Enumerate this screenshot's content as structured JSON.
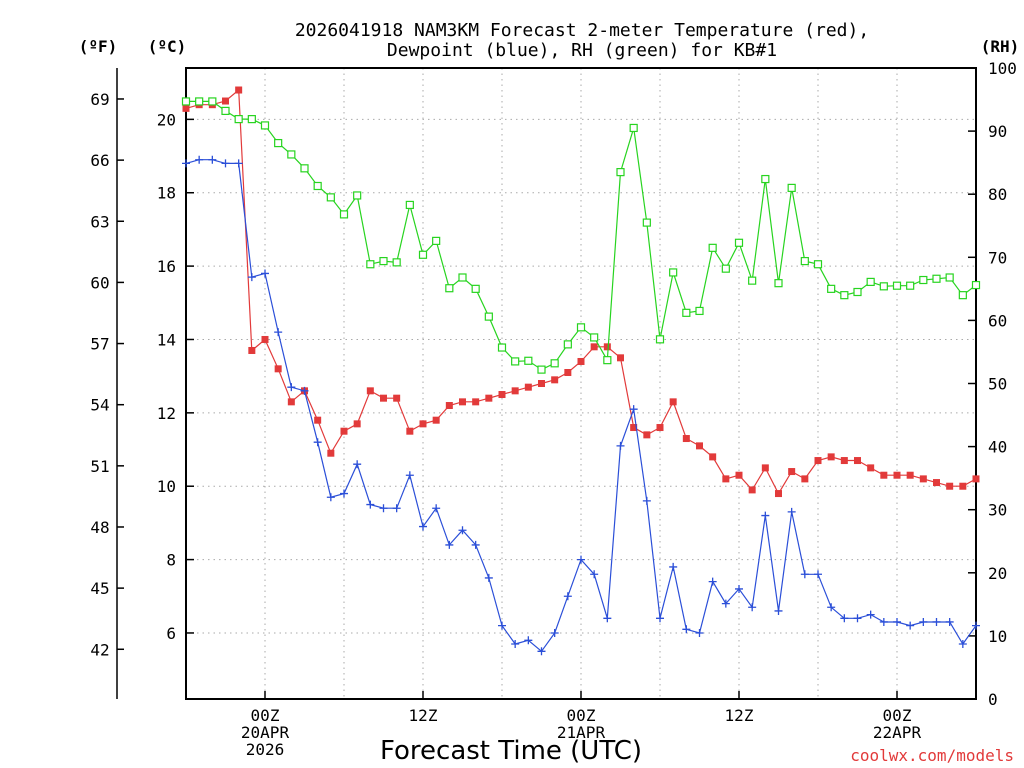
{
  "chart_data": {
    "type": "line",
    "title_line1": "2026041918 NAM3KM Forecast 2-meter Temperature (red),",
    "title_line2": "Dewpoint (blue), RH (green) for KB#1",
    "xlabel": "Forecast Time (UTC)",
    "credit": "coolwx.com/models",
    "units": {
      "fahrenheit": "(ºF)",
      "celsius": "(ºC)",
      "rh": "(RH)"
    },
    "x_range_hours": [
      -6,
      54
    ],
    "celsius_range": [
      4.2,
      21.4
    ],
    "rh_range": [
      0,
      100
    ],
    "x_ticks": [
      {
        "h": 0,
        "lines": [
          "00Z",
          "20APR",
          "2026"
        ]
      },
      {
        "h": 12,
        "lines": [
          "12Z"
        ]
      },
      {
        "h": 24,
        "lines": [
          "00Z",
          "21APR"
        ]
      },
      {
        "h": 36,
        "lines": [
          "12Z"
        ]
      },
      {
        "h": 48,
        "lines": [
          "00Z",
          "22APR"
        ]
      }
    ],
    "celsius_ticks": [
      "6",
      "8",
      "10",
      "12",
      "14",
      "16",
      "18",
      "20"
    ],
    "fahrenheit_ticks": [
      "42",
      "45",
      "48",
      "51",
      "54",
      "57",
      "60",
      "63",
      "66",
      "69"
    ],
    "rh_ticks": [
      "0",
      "10",
      "20",
      "30",
      "40",
      "50",
      "60",
      "70",
      "80",
      "90",
      "100"
    ],
    "hours": [
      -6,
      -5,
      -4,
      -3,
      -2,
      -1,
      0,
      1,
      2,
      3,
      4,
      5,
      6,
      7,
      8,
      9,
      10,
      11,
      12,
      13,
      14,
      15,
      16,
      17,
      18,
      19,
      20,
      21,
      22,
      23,
      24,
      25,
      26,
      27,
      28,
      29,
      30,
      31,
      32,
      33,
      34,
      35,
      36,
      37,
      38,
      39,
      40,
      41,
      42,
      43,
      44,
      45,
      46,
      47,
      48,
      49,
      50,
      51,
      52,
      53,
      54
    ],
    "series": [
      {
        "name": "2-meter Temperature",
        "color": "#e23a3a",
        "marker": "filled-square",
        "unit": "C",
        "values": [
          20.3,
          20.4,
          20.4,
          20.5,
          20.8,
          13.7,
          14.0,
          13.2,
          12.3,
          12.6,
          11.8,
          10.9,
          11.5,
          11.7,
          12.6,
          12.4,
          12.4,
          11.5,
          11.7,
          11.8,
          12.2,
          12.3,
          12.3,
          12.4,
          12.5,
          12.6,
          12.7,
          12.8,
          12.9,
          13.1,
          13.4,
          13.8,
          13.8,
          13.5,
          11.6,
          11.4,
          11.6,
          12.3,
          11.3,
          11.1,
          10.8,
          10.2,
          10.3,
          9.9,
          10.5,
          9.8,
          10.4,
          10.2,
          10.7,
          10.8,
          10.7,
          10.7,
          10.5,
          10.3,
          10.3,
          10.3,
          10.2,
          10.1,
          10.0,
          10.0,
          10.2
        ]
      },
      {
        "name": "Dewpoint",
        "color": "#2b4fd8",
        "marker": "plus",
        "unit": "C",
        "values": [
          18.8,
          18.9,
          18.9,
          18.8,
          18.8,
          15.7,
          15.8,
          14.2,
          12.7,
          12.6,
          11.2,
          9.7,
          9.8,
          10.6,
          9.5,
          9.4,
          9.4,
          10.3,
          8.9,
          9.4,
          8.4,
          8.8,
          8.4,
          7.5,
          6.2,
          5.7,
          5.8,
          5.5,
          6.0,
          7.0,
          8.0,
          7.6,
          6.4,
          11.1,
          12.1,
          9.6,
          6.4,
          7.8,
          6.1,
          6.0,
          7.4,
          6.8,
          7.2,
          6.7,
          9.2,
          6.6,
          9.3,
          7.6,
          7.6,
          6.7,
          6.4,
          6.4,
          6.5,
          6.3,
          6.3,
          6.2,
          6.3,
          6.3,
          6.3,
          5.7,
          6.2
        ]
      },
      {
        "name": "Relative Humidity",
        "color": "#27d41f",
        "marker": "open-square",
        "unit": "%",
        "values": [
          94.7,
          94.7,
          94.7,
          93.2,
          91.9,
          91.9,
          90.9,
          88.1,
          86.3,
          84.1,
          81.3,
          79.5,
          76.8,
          79.8,
          68.9,
          69.4,
          69.2,
          78.3,
          70.4,
          72.6,
          65.1,
          66.8,
          65.0,
          60.6,
          55.7,
          53.5,
          53.6,
          52.2,
          53.2,
          56.2,
          58.9,
          57.3,
          53.7,
          83.5,
          90.5,
          75.5,
          57.0,
          67.6,
          61.2,
          61.5,
          71.5,
          68.2,
          72.3,
          66.3,
          82.4,
          65.9,
          81.0,
          69.4,
          68.9,
          65.0,
          64.0,
          64.5,
          66.1,
          65.4,
          65.5,
          65.5,
          66.4,
          66.6,
          66.8,
          64.0,
          65.6
        ]
      }
    ]
  }
}
